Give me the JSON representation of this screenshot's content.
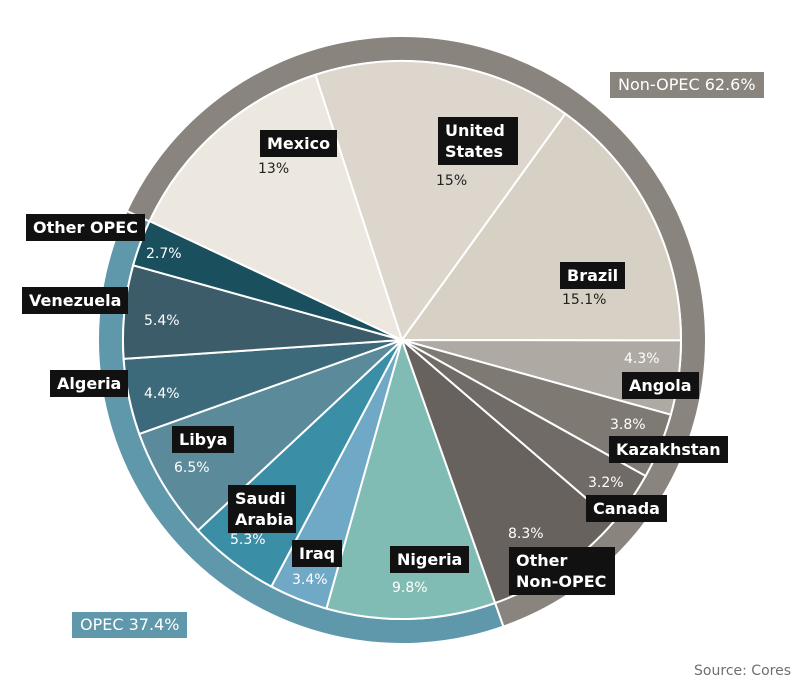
{
  "chart_data": {
    "type": "pie",
    "categories": [
      "Nigeria",
      "Iraq",
      "Saudi Arabia",
      "Libya",
      "Algeria",
      "Venezuela",
      "Other OPEC",
      "Mexico",
      "United States",
      "Brazil",
      "Angola",
      "Kazakhstan",
      "Canada",
      "Other Non-OPEC"
    ],
    "values": [
      9.8,
      3.4,
      5.3,
      6.5,
      4.4,
      5.4,
      2.7,
      13,
      15,
      15.1,
      4.3,
      3.8,
      3.2,
      8.3
    ],
    "value_labels": [
      "9.8%",
      "3.4%",
      "5.3%",
      "6.5%",
      "4.4%",
      "5.4%",
      "2.7%",
      "13%",
      "15%",
      "15.1%",
      "4.3%",
      "3.8%",
      "3.2%",
      "8.3%"
    ],
    "colors": [
      "#80bcb3",
      "#6fa9c6",
      "#3a8ea6",
      "#5b8a9a",
      "#3d6a7a",
      "#3b5c68",
      "#1a4f5e",
      "#ece7df",
      "#dcd6cd",
      "#d7d0c5",
      "#aea9a2",
      "#7e7973",
      "#706b66",
      "#67625e"
    ],
    "groups": [
      {
        "label": "OPEC 37.4%",
        "value": 37.4,
        "color": "#5f97ab"
      },
      {
        "label": "Non-OPEC 62.6%",
        "value": 62.6,
        "color": "#8a847e"
      }
    ],
    "source": "Source: Cores"
  }
}
